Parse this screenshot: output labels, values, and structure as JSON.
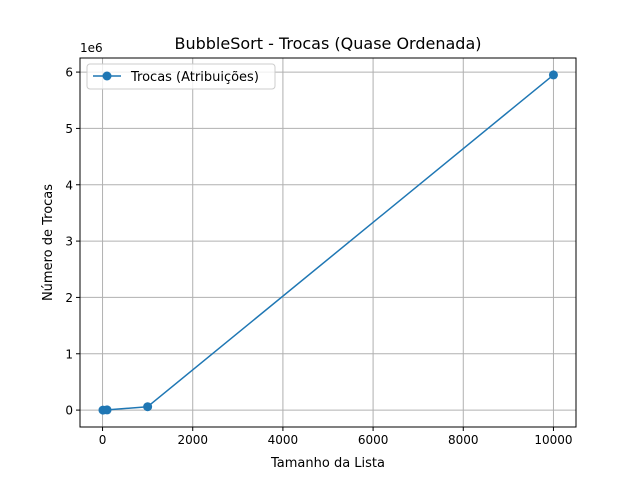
{
  "chart_data": {
    "type": "line",
    "title": "BubbleSort - Trocas (Quase Ordenada)",
    "xlabel": "Tamanho da Lista",
    "ylabel": "Número de Trocas",
    "y_offset_label": "1e6",
    "xlim": [
      -500,
      10500
    ],
    "ylim": [
      -300000,
      6250000
    ],
    "x_ticks": [
      0,
      2000,
      4000,
      6000,
      8000,
      10000
    ],
    "x_tick_labels": [
      "0",
      "2000",
      "4000",
      "6000",
      "8000",
      "10000"
    ],
    "y_ticks": [
      0,
      1000000,
      2000000,
      3000000,
      4000000,
      5000000,
      6000000
    ],
    "y_tick_labels": [
      "0",
      "1",
      "2",
      "3",
      "4",
      "5",
      "6"
    ],
    "grid": true,
    "legend_position": "top-left",
    "series": [
      {
        "name": "Trocas (Atribuições)",
        "color": "#1f77b4",
        "marker": "circle",
        "x": [
          10,
          100,
          1000,
          10000
        ],
        "y": [
          0,
          3000,
          60000,
          5950000
        ]
      }
    ]
  }
}
